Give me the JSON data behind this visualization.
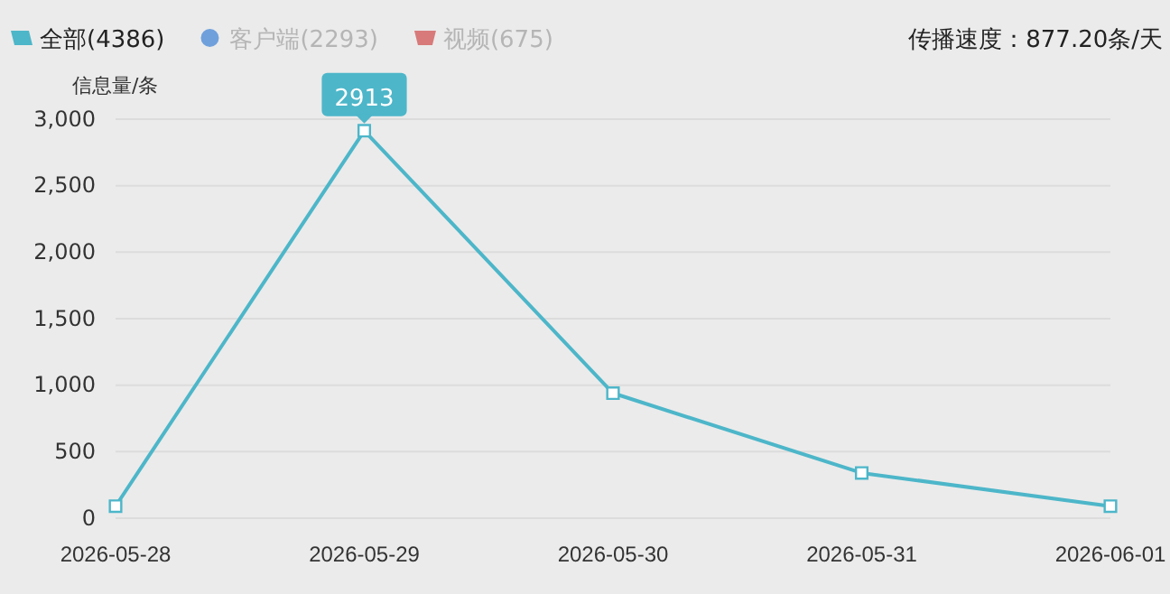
{
  "chart_data": {
    "type": "line",
    "ylabel": "信息量/条",
    "categories": [
      "2026-05-28",
      "2026-05-29",
      "2026-05-30",
      "2026-05-31",
      "2026-06-01"
    ],
    "series": [
      {
        "name": "全部(4386)",
        "color": "#4db6c9",
        "values": [
          90,
          2913,
          940,
          340,
          90
        ],
        "value_labels": [
          null,
          "2913",
          null,
          null,
          null
        ]
      }
    ],
    "ylim": [
      0,
      3000
    ],
    "yticks": [
      {
        "value": 0,
        "label": "0"
      },
      {
        "value": 500,
        "label": "500"
      },
      {
        "value": 1000,
        "label": "1,000"
      },
      {
        "value": 1500,
        "label": "1,500"
      },
      {
        "value": 2000,
        "label": "2,000"
      },
      {
        "value": 2500,
        "label": "2,500"
      },
      {
        "value": 3000,
        "label": "3,000"
      }
    ],
    "grid": "y",
    "legend": "top left",
    "marker": "square",
    "line_style": "solid",
    "annotations": [
      "客户端(2293)",
      "视频(675)",
      "传播速度：877.20条/天"
    ]
  }
}
